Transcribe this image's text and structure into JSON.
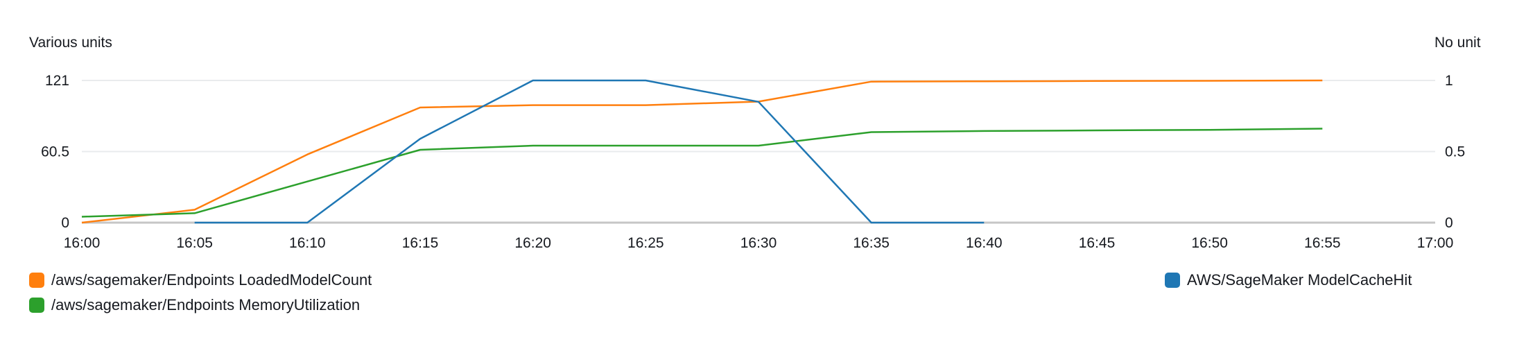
{
  "chart_data": {
    "type": "line",
    "y_left_label": "Various units",
    "y_right_label": "No unit",
    "x_ticks": [
      "16:00",
      "16:05",
      "16:10",
      "16:15",
      "16:20",
      "16:25",
      "16:30",
      "16:35",
      "16:40",
      "16:45",
      "16:50",
      "16:55",
      "17:00"
    ],
    "x_range": [
      0,
      60
    ],
    "y_left_ticks": [
      "0",
      "60.5",
      "121"
    ],
    "y_left_range": [
      0,
      121
    ],
    "y_right_ticks": [
      "0",
      "0.5",
      "1"
    ],
    "y_right_range": [
      0,
      1
    ],
    "grid": true,
    "legend_placement": "bottom",
    "series": [
      {
        "name": "/aws/sagemaker/Endpoints LoadedModelCount",
        "axis": "left",
        "color": "#ff7f0e",
        "x": [
          0,
          5,
          10,
          15,
          20,
          25,
          30,
          35,
          40,
          45,
          50,
          55
        ],
        "y": [
          0,
          11,
          58,
          98,
          100,
          100,
          103,
          120,
          120.3,
          120.5,
          120.7,
          121
        ]
      },
      {
        "name": "/aws/sagemaker/Endpoints MemoryUtilization",
        "axis": "left",
        "color": "#2ca02c",
        "x": [
          0,
          5,
          10,
          15,
          20,
          25,
          30,
          35,
          40,
          45,
          50,
          55
        ],
        "y": [
          5,
          8,
          35,
          62,
          65.5,
          65.5,
          65.5,
          77,
          78,
          78.5,
          79,
          80
        ]
      },
      {
        "name": "AWS/SageMaker ModelCacheHit",
        "axis": "right",
        "color": "#1f77b4",
        "x": [
          5,
          10,
          15,
          20,
          25,
          30,
          35,
          40
        ],
        "y": [
          0,
          0,
          0.59,
          1,
          1,
          0.85,
          0,
          0
        ]
      }
    ]
  }
}
